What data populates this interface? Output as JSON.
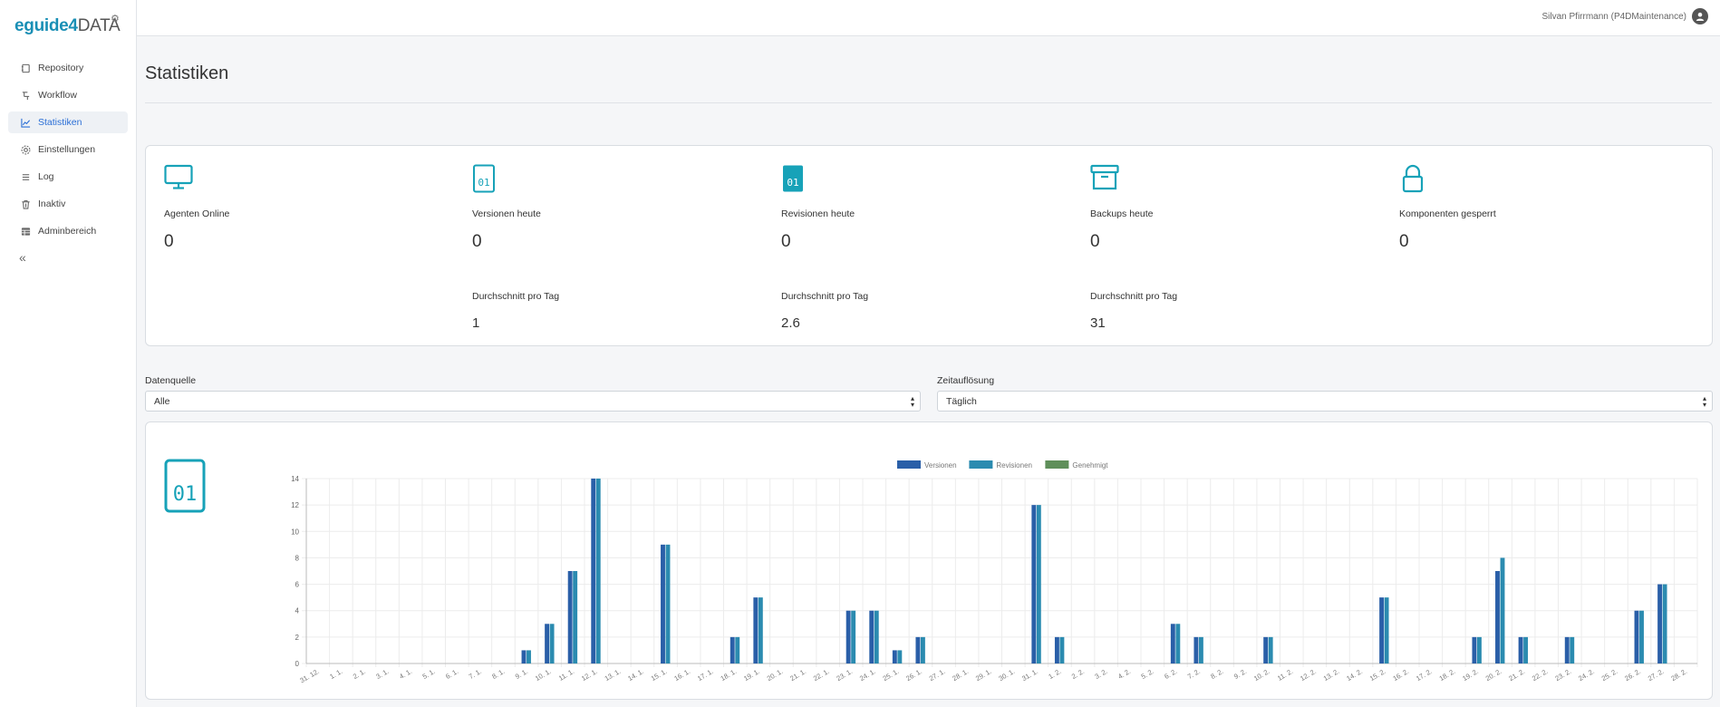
{
  "app": {
    "logo_main": "eguide4",
    "logo_suffix": "DATA",
    "user": "Silvan Pfirrmann (P4DMaintenance)"
  },
  "colors": {
    "accent": "#17a2b8",
    "active_nav": "#2b6fd6",
    "series_versionen": "#2a5fa8",
    "series_revisionen": "#2b8bb0",
    "series_genehmigt": "#5f8f5a"
  },
  "sidebar": {
    "items": [
      {
        "label": "Repository",
        "icon": "repository-icon"
      },
      {
        "label": "Workflow",
        "icon": "workflow-icon"
      },
      {
        "label": "Statistiken",
        "icon": "chart-line-icon",
        "active": true
      },
      {
        "label": "Einstellungen",
        "icon": "gear-icon"
      },
      {
        "label": "Log",
        "icon": "list-icon"
      },
      {
        "label": "Inaktiv",
        "icon": "trash-icon"
      },
      {
        "label": "Adminbereich",
        "icon": "table-icon"
      }
    ]
  },
  "page": {
    "title": "Statistiken"
  },
  "stats": {
    "agents": {
      "label": "Agenten Online",
      "value": "0"
    },
    "versionen": {
      "label": "Versionen heute",
      "value": "0",
      "avg_label": "Durchschnitt pro Tag",
      "avg_value": "1"
    },
    "revisionen": {
      "label": "Revisionen heute",
      "value": "0",
      "avg_label": "Durchschnitt pro Tag",
      "avg_value": "2.6"
    },
    "backups": {
      "label": "Backups heute",
      "value": "0",
      "avg_label": "Durchschnitt pro Tag",
      "avg_value": "31"
    },
    "gesperrt": {
      "label": "Komponenten gesperrt",
      "value": "0"
    }
  },
  "filters": {
    "datenquelle": {
      "label": "Datenquelle",
      "value": "Alle"
    },
    "zeitaufloesung": {
      "label": "Zeitauflösung",
      "value": "Täglich"
    }
  },
  "chart_icon_text": "01",
  "chart_data": {
    "type": "bar",
    "legend_position": "top",
    "grid": true,
    "ylim": [
      0,
      14
    ],
    "yticks": [
      0,
      2,
      4,
      6,
      8,
      10,
      12,
      14
    ],
    "categories": [
      "31. 12.",
      "1. 1.",
      "2. 1.",
      "3. 1.",
      "4. 1.",
      "5. 1.",
      "6. 1.",
      "7. 1.",
      "8. 1.",
      "9. 1.",
      "10. 1.",
      "11. 1.",
      "12. 1.",
      "13. 1.",
      "14. 1.",
      "15. 1.",
      "16. 1.",
      "17. 1.",
      "18. 1.",
      "19. 1.",
      "20. 1.",
      "21. 1.",
      "22. 1.",
      "23. 1.",
      "24. 1.",
      "25. 1.",
      "26. 1.",
      "27. 1.",
      "28. 1.",
      "29. 1.",
      "30. 1.",
      "31. 1.",
      "1. 2.",
      "2. 2.",
      "3. 2.",
      "4. 2.",
      "5. 2.",
      "6. 2.",
      "7. 2.",
      "8. 2.",
      "9. 2.",
      "10. 2.",
      "11. 2.",
      "12. 2.",
      "13. 2.",
      "14. 2.",
      "15. 2.",
      "16. 2.",
      "17. 2.",
      "18. 2.",
      "19. 2.",
      "20. 2.",
      "21. 2.",
      "22. 2.",
      "23. 2.",
      "24. 2.",
      "25. 2.",
      "26. 2.",
      "27. 2.",
      "28. 2."
    ],
    "series": [
      {
        "name": "Versionen",
        "color": "#2a5fa8",
        "values": [
          0,
          0,
          0,
          0,
          0,
          0,
          0,
          0,
          0,
          1,
          3,
          7,
          14,
          0,
          0,
          9,
          0,
          0,
          2,
          5,
          0,
          0,
          0,
          4,
          4,
          1,
          2,
          0,
          0,
          0,
          0,
          12,
          2,
          0,
          0,
          0,
          0,
          3,
          2,
          0,
          0,
          2,
          0,
          0,
          0,
          0,
          5,
          0,
          0,
          0,
          2,
          7,
          2,
          0,
          2,
          0,
          0,
          4,
          6,
          0
        ]
      },
      {
        "name": "Revisionen",
        "color": "#2b8bb0",
        "values": [
          0,
          0,
          0,
          0,
          0,
          0,
          0,
          0,
          0,
          1,
          3,
          7,
          14,
          0,
          0,
          9,
          0,
          0,
          2,
          5,
          0,
          0,
          0,
          4,
          4,
          1,
          2,
          0,
          0,
          0,
          0,
          12,
          2,
          0,
          0,
          0,
          0,
          3,
          2,
          0,
          0,
          2,
          0,
          0,
          0,
          0,
          5,
          0,
          0,
          0,
          2,
          8,
          2,
          0,
          2,
          0,
          0,
          4,
          6,
          0
        ]
      },
      {
        "name": "Genehmigt",
        "color": "#5f8f5a",
        "values": [
          0,
          0,
          0,
          0,
          0,
          0,
          0,
          0,
          0,
          0,
          0,
          0,
          0,
          0,
          0,
          0,
          0,
          0,
          0,
          0,
          0,
          0,
          0,
          0,
          0,
          0,
          0,
          0,
          0,
          0,
          0,
          0,
          0,
          0,
          0,
          0,
          0,
          0,
          0,
          0,
          0,
          0,
          0,
          0,
          0,
          0,
          0,
          0,
          0,
          0,
          0,
          0,
          0,
          0,
          0,
          0,
          0,
          0,
          0,
          0
        ]
      }
    ]
  }
}
